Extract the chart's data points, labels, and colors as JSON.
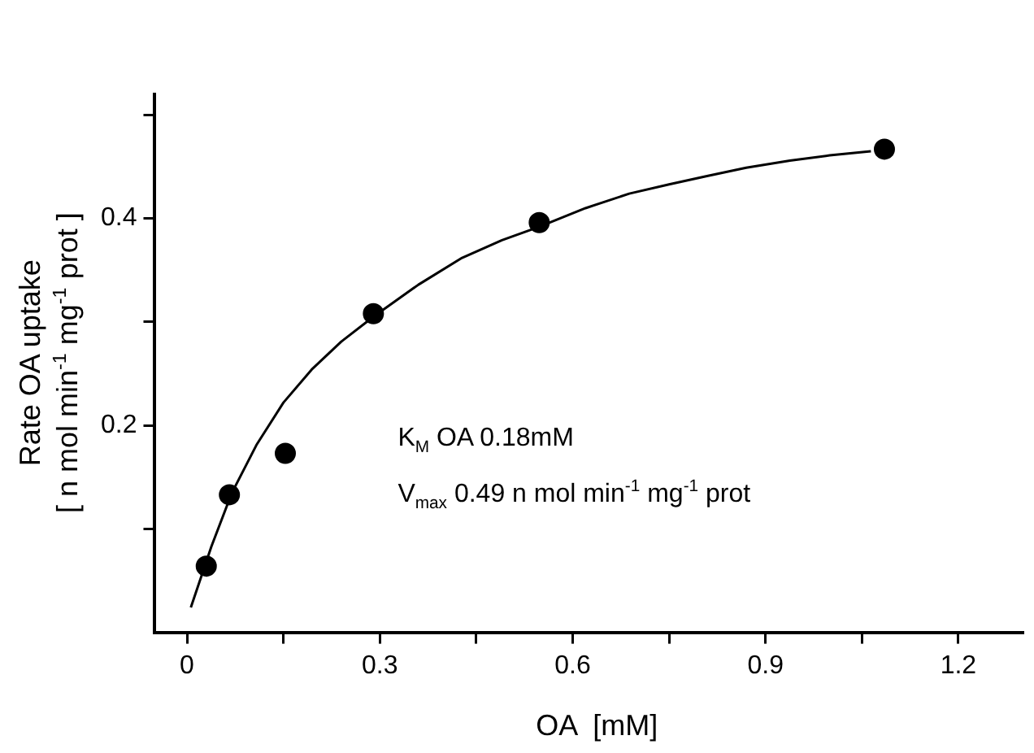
{
  "chart_data": {
    "type": "scatter",
    "xlabel": "OA  [mM]",
    "ylabel": "Rate OA uptake\n[ n mol min$^{-1}$ mg$^{-1}$ prot ]",
    "xlim": [
      -0.05,
      1.3
    ],
    "ylim": [
      0,
      0.52
    ],
    "xticks": [
      0,
      {
        "value": 0.15,
        "label": null
      },
      0.3,
      {
        "value": 0.45,
        "label": null
      },
      0.6,
      {
        "value": 0.75,
        "label": null
      },
      0.9,
      {
        "value": 1.05,
        "label": null
      },
      1.2
    ],
    "yticks": [
      {
        "value": 0.1,
        "label": null
      },
      0.2,
      {
        "value": 0.3,
        "label": null
      },
      0.4,
      {
        "value": 0.5,
        "label": null
      }
    ],
    "grid": false,
    "legend": false,
    "marker": "circle",
    "series": [
      {
        "type": "scatter",
        "color": "#000000",
        "x": [
          0.03,
          0.066,
          0.153,
          0.29,
          0.548,
          1.085
        ],
        "values": [
          0.064,
          0.133,
          0.173,
          0.308,
          0.396,
          0.467
        ]
      },
      {
        "type": "line",
        "color": "#000000",
        "marker": "none",
        "line_style": "solid",
        "x": [
          0.006,
          0.038,
          0.07,
          0.108,
          0.15,
          0.194,
          0.24,
          0.29,
          0.36,
          0.428,
          0.49,
          0.548,
          0.62,
          0.688,
          0.75,
          0.809,
          0.87,
          0.938,
          1.0,
          1.064
        ],
        "values": [
          0.024,
          0.083,
          0.135,
          0.181,
          0.222,
          0.254,
          0.281,
          0.305,
          0.336,
          0.362,
          0.379,
          0.392,
          0.41,
          0.424,
          0.433,
          0.441,
          0.449,
          0.456,
          0.461,
          0.465
        ]
      }
    ],
    "annotations": [
      "K$_{M}$ OA 0.18mM",
      "V$_{max}$ 0.49 n mol min$^{-1}$ mg$^{-1}$ prot"
    ]
  }
}
